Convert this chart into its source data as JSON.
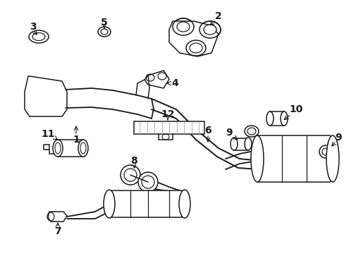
{
  "background_color": "#ffffff",
  "line_color": "#1a1a1a",
  "fig_width": 4.89,
  "fig_height": 3.6,
  "dpi": 100,
  "label_fontsize": 10,
  "lw": 1.1
}
